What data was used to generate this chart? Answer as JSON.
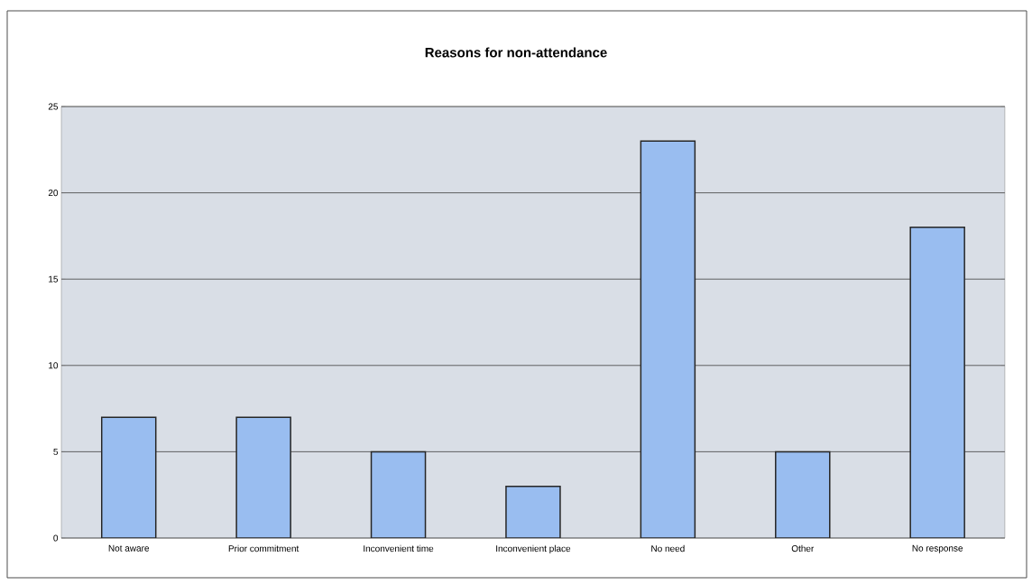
{
  "chart_data": {
    "type": "bar",
    "title": "Reasons for non-attendance",
    "categories": [
      "Not aware",
      "Prior commitment",
      "Inconvenient time",
      "Inconvenient place",
      "No need",
      "Other",
      "No response"
    ],
    "values": [
      7,
      7,
      5,
      3,
      23,
      5,
      18
    ],
    "color": "#99bdf0",
    "ylim": [
      0,
      25
    ],
    "yticks": [
      0,
      5,
      10,
      15,
      20,
      25
    ],
    "grid": "y"
  }
}
